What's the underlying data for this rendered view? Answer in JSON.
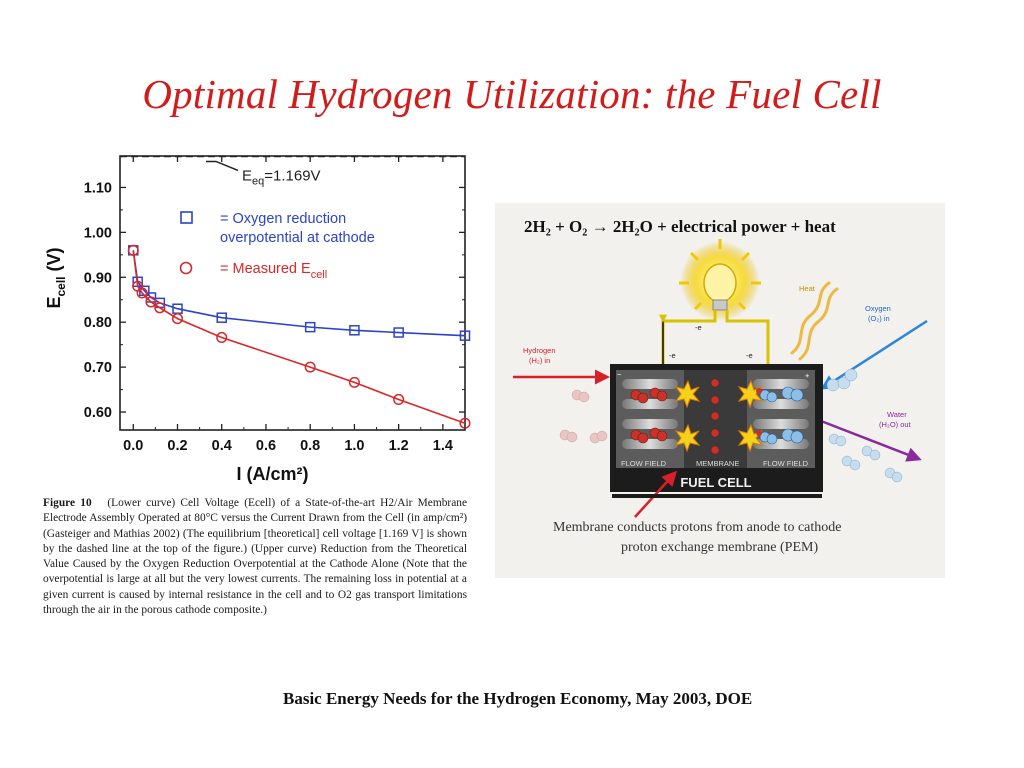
{
  "slide": {
    "title": "Optimal Hydrogen Utilization: the Fuel Cell",
    "source": "Basic Energy Needs for the Hydrogen Economy, May 2003, DOE"
  },
  "chart_data": {
    "type": "line",
    "xlabel": "I (A/cm²)",
    "ylabel": "E",
    "ylabel_sub": "cell",
    "ylabel_unit": " (V)",
    "xlim": [
      -0.06,
      1.5
    ],
    "ylim": [
      0.56,
      1.17
    ],
    "x_ticks": [
      "0.0",
      "0.2",
      "0.4",
      "0.6",
      "0.8",
      "1.0",
      "1.2",
      "1.4"
    ],
    "y_ticks": [
      "0.60",
      "0.70",
      "0.80",
      "0.90",
      "1.00",
      "1.10"
    ],
    "equilibrium": {
      "value": 1.169,
      "label": "E",
      "label_sub": "eq",
      "label_suffix": "=1.169V"
    },
    "series": [
      {
        "name": "Oxygen reduction overpotential at cathode",
        "marker": "square",
        "color": "#2b44c8",
        "x": [
          0.0,
          0.02,
          0.05,
          0.08,
          0.12,
          0.2,
          0.4,
          0.8,
          1.0,
          1.2,
          1.5
        ],
        "y": [
          0.96,
          0.89,
          0.87,
          0.855,
          0.843,
          0.83,
          0.81,
          0.789,
          0.782,
          0.777,
          0.77
        ]
      },
      {
        "name": "Measured E",
        "marker": "circle",
        "color": "#d82828",
        "x": [
          0.0,
          0.02,
          0.04,
          0.08,
          0.12,
          0.2,
          0.4,
          0.8,
          1.0,
          1.2,
          1.5
        ],
        "y": [
          0.96,
          0.88,
          0.865,
          0.845,
          0.832,
          0.808,
          0.766,
          0.7,
          0.666,
          0.628,
          0.575
        ]
      }
    ],
    "legend": [
      {
        "symbol": "square",
        "line1": "= Oxygen reduction",
        "line2": "overpotential at cathode"
      },
      {
        "symbol": "circle",
        "text": "= Measured E",
        "sub": "cell"
      }
    ]
  },
  "caption": {
    "label": "Figure 10",
    "text": "(Lower curve) Cell Voltage (Ecell) of a State-of-the-art H2/Air Membrane Electrode Assembly Operated at 80°C versus the Current Drawn from the Cell (in amp/cm²) (Gasteiger and Mathias 2002) (The equilibrium [theoretical] cell voltage [1.169 V] is shown by the dashed line at the top of the figure.) (Upper curve) Reduction from the Theoretical Value Caused by the Oxygen Reduction Overpotential at the Cathode Alone (Note that the overpotential is large at all but the very lowest currents. The remaining loss in potential at a given current is caused by internal resistance in the cell and to O2 gas transport limitations through the air in the porous cathode composite.)"
  },
  "fuel_cell": {
    "reaction": "2H₂ + O₂ → 2H₂O + electrical power + heat",
    "heat_label": "Heat",
    "oxygen_label_1": "Oxygen",
    "oxygen_label_2": "(O₂) in",
    "hydrogen_label_1": "Hydrogen",
    "hydrogen_label_2": "(H₂) in",
    "water_label_1": "Water",
    "water_label_2": "(H₂O) out",
    "flow_field_left": "FLOW FIELD",
    "membrane_label": "MEMBRANE",
    "flow_field_right": "FLOW FIELD",
    "cell_label": "FUEL CELL",
    "note_line1": "Membrane conducts protons from anode to cathode",
    "note_line2": "proton exchange membrane (PEM)",
    "minus_sign": "−",
    "plus_sign": "+",
    "electron": "-e"
  }
}
